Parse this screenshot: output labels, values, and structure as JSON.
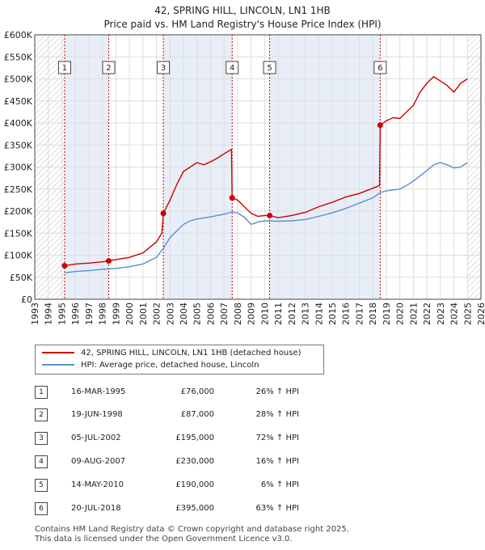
{
  "title_line1": "42, SPRING HILL, LINCOLN, LN1 1HB",
  "title_line2": "Price paid vs. HM Land Registry's House Price Index (HPI)",
  "legend": {
    "property_label": "42, SPRING HILL, LINCOLN, LN1 1HB (detached house)",
    "hpi_label": "HPI: Average price, detached house, Lincoln"
  },
  "colors": {
    "property": "#cc0000",
    "hpi": "#5b8fcf",
    "shade": "#e8eef8",
    "marker_line": "#cc0000"
  },
  "sales": [
    {
      "num": "1",
      "date": "16-MAR-1995",
      "price": "£76,000",
      "hpi": "26% ↑ HPI"
    },
    {
      "num": "2",
      "date": "19-JUN-1998",
      "price": "£87,000",
      "hpi": "28% ↑ HPI"
    },
    {
      "num": "3",
      "date": "05-JUL-2002",
      "price": "£195,000",
      "hpi": "72% ↑ HPI"
    },
    {
      "num": "4",
      "date": "09-AUG-2007",
      "price": "£230,000",
      "hpi": "16% ↑ HPI"
    },
    {
      "num": "5",
      "date": "14-MAY-2010",
      "price": "£190,000",
      "hpi": "6% ↑ HPI"
    },
    {
      "num": "6",
      "date": "20-JUL-2018",
      "price": "£395,000",
      "hpi": "63% ↑ HPI"
    }
  ],
  "footer_line1": "Contains HM Land Registry data © Crown copyright and database right 2025.",
  "footer_line2": "This data is licensed under the Open Government Licence v3.0.",
  "chart_data": {
    "type": "line",
    "title": "42, SPRING HILL, LINCOLN, LN1 1HB",
    "subtitle": "Price paid vs. HM Land Registry's House Price Index (HPI)",
    "xlabel": "",
    "ylabel": "",
    "xlim": [
      1993,
      2026
    ],
    "ylim": [
      0,
      600000
    ],
    "x_ticks": [
      1993,
      1994,
      1995,
      1996,
      1997,
      1998,
      1999,
      2000,
      2001,
      2002,
      2003,
      2004,
      2005,
      2006,
      2007,
      2008,
      2009,
      2010,
      2011,
      2012,
      2013,
      2014,
      2015,
      2016,
      2017,
      2018,
      2019,
      2020,
      2021,
      2022,
      2023,
      2024,
      2025,
      2026
    ],
    "y_ticks": [
      0,
      50000,
      100000,
      150000,
      200000,
      250000,
      300000,
      350000,
      400000,
      450000,
      500000,
      550000,
      600000
    ],
    "y_tick_labels": [
      "£0",
      "£50K",
      "£100K",
      "£150K",
      "£200K",
      "£250K",
      "£300K",
      "£350K",
      "£400K",
      "£450K",
      "£500K",
      "£550K",
      "£600K"
    ],
    "grid": true,
    "legend_position": "bottom",
    "shaded_ranges": [
      [
        1995.21,
        1998.47
      ],
      [
        2002.51,
        2007.6
      ],
      [
        2010.37,
        2018.55
      ]
    ],
    "hatched_ranges": [
      [
        1993,
        1995.21
      ],
      [
        2025.0,
        2026
      ]
    ],
    "sale_markers": [
      {
        "label": "1",
        "x": 1995.21,
        "y": 76000
      },
      {
        "label": "2",
        "x": 1998.47,
        "y": 87000
      },
      {
        "label": "3",
        "x": 2002.51,
        "y": 195000
      },
      {
        "label": "4",
        "x": 2007.6,
        "y": 230000
      },
      {
        "label": "5",
        "x": 2010.37,
        "y": 190000
      },
      {
        "label": "6",
        "x": 2018.55,
        "y": 395000
      }
    ],
    "series": [
      {
        "name": "42, SPRING HILL, LINCOLN, LN1 1HB (detached house)",
        "x": [
          1995.21,
          1996.0,
          1997.0,
          1998.0,
          1998.47,
          1999.0,
          2000.0,
          2001.0,
          2002.0,
          2002.4,
          2002.51,
          2003.0,
          2003.5,
          2004.0,
          2004.5,
          2005.0,
          2005.5,
          2006.0,
          2006.5,
          2007.0,
          2007.55,
          2007.6,
          2008.0,
          2008.5,
          2009.0,
          2009.5,
          2010.0,
          2010.37,
          2011.0,
          2012.0,
          2013.0,
          2014.0,
          2015.0,
          2016.0,
          2017.0,
          2018.0,
          2018.5,
          2018.55,
          2019.0,
          2019.5,
          2020.0,
          2020.5,
          2021.0,
          2021.5,
          2022.0,
          2022.5,
          2023.0,
          2023.5,
          2024.0,
          2024.5,
          2025.0
        ],
        "values": [
          76000,
          80000,
          82000,
          85000,
          87000,
          90000,
          95000,
          105000,
          130000,
          150000,
          195000,
          225000,
          260000,
          290000,
          300000,
          310000,
          305000,
          312000,
          320000,
          330000,
          340000,
          230000,
          225000,
          210000,
          195000,
          188000,
          190000,
          190000,
          185000,
          190000,
          197000,
          210000,
          220000,
          232000,
          240000,
          252000,
          258000,
          395000,
          405000,
          412000,
          410000,
          425000,
          440000,
          470000,
          490000,
          505000,
          495000,
          485000,
          470000,
          490000,
          500000
        ]
      },
      {
        "name": "HPI: Average price, detached house, Lincoln",
        "x": [
          1995.21,
          1996.0,
          1997.0,
          1998.0,
          1999.0,
          2000.0,
          2001.0,
          2002.0,
          2002.5,
          2003.0,
          2003.5,
          2004.0,
          2004.5,
          2005.0,
          2006.0,
          2007.0,
          2007.6,
          2008.0,
          2008.5,
          2009.0,
          2009.5,
          2010.0,
          2011.0,
          2012.0,
          2013.0,
          2014.0,
          2015.0,
          2016.0,
          2017.0,
          2018.0,
          2018.55,
          2019.0,
          2020.0,
          2020.5,
          2021.0,
          2021.5,
          2022.0,
          2022.5,
          2023.0,
          2023.5,
          2024.0,
          2024.5,
          2025.0
        ],
        "values": [
          60000,
          63000,
          65000,
          68000,
          70000,
          74000,
          80000,
          95000,
          115000,
          140000,
          155000,
          170000,
          178000,
          182000,
          187000,
          193000,
          198000,
          196000,
          186000,
          170000,
          175000,
          178000,
          177000,
          178000,
          181000,
          188000,
          196000,
          206000,
          218000,
          230000,
          242000,
          246000,
          250000,
          258000,
          268000,
          280000,
          292000,
          305000,
          310000,
          305000,
          298000,
          300000,
          310000
        ]
      }
    ]
  }
}
